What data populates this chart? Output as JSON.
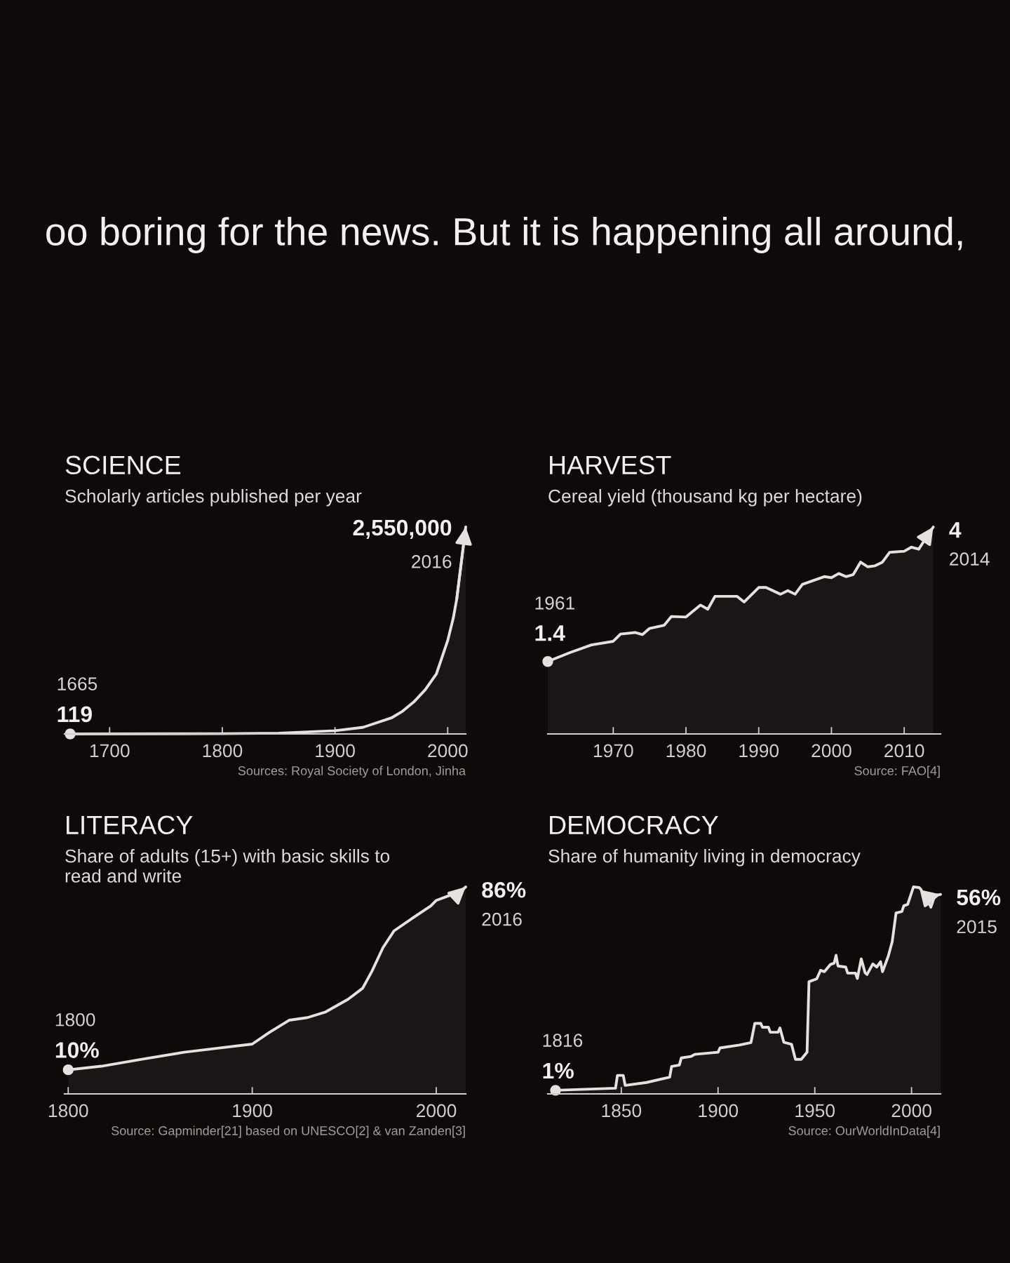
{
  "chart_data": [
    {
      "type": "other",
      "title": "oo boring for the news. But it is happening all around,"
    },
    {
      "type": "area",
      "title": "SCIENCE",
      "subtitle": "Scholarly articles published per year",
      "color": "#e4e1de",
      "x": [
        1665,
        1800,
        1850,
        1900,
        1925,
        1950,
        1960,
        1970,
        1980,
        1990,
        2000,
        2005,
        2008,
        2016
      ],
      "values": [
        119,
        3000,
        10000,
        40000,
        82000,
        197000,
        280000,
        395000,
        543000,
        740000,
        1150000,
        1430000,
        1660000,
        2550000
      ],
      "value_labels": [
        "119",
        null,
        null,
        null,
        null,
        null,
        null,
        null,
        null,
        null,
        null,
        null,
        null,
        "2,550,000"
      ],
      "annotations": [
        {
          "text": "1665",
          "x": 1665,
          "y": 119
        },
        {
          "text": "2016",
          "x": 2016,
          "y": 2550000
        },
        "Sources: Royal Society of London, Jinha"
      ],
      "xlim": [
        1660,
        2016
      ],
      "xticks": [
        1700,
        1800,
        1900,
        2000
      ],
      "tick_labels": "x"
    },
    {
      "type": "area",
      "title": "HARVEST",
      "subtitle": "Cereal yield (thousand kg per hectare)",
      "color": "#e4e1de",
      "x": [
        1961,
        1964,
        1967,
        1970,
        1971,
        1973,
        1974,
        1975,
        1977,
        1978,
        1980,
        1982,
        1983,
        1984,
        1987,
        1988,
        1990,
        1991,
        1993,
        1994,
        1995,
        1996,
        1999,
        2000,
        2001,
        2002,
        2003,
        2004,
        2005,
        2006,
        2007,
        2008,
        2010,
        2011,
        2012,
        2013,
        2014
      ],
      "values": [
        1.4,
        1.57,
        1.72,
        1.79,
        1.93,
        1.96,
        1.92,
        2.04,
        2.1,
        2.27,
        2.26,
        2.49,
        2.41,
        2.66,
        2.66,
        2.55,
        2.83,
        2.83,
        2.7,
        2.77,
        2.7,
        2.89,
        3.04,
        3.02,
        3.1,
        3.04,
        3.08,
        3.32,
        3.23,
        3.25,
        3.32,
        3.51,
        3.53,
        3.61,
        3.57,
        3.79,
        4
      ],
      "value_labels": [
        "1.4",
        null,
        null,
        null,
        null,
        null,
        null,
        null,
        null,
        null,
        null,
        null,
        null,
        null,
        null,
        null,
        null,
        null,
        null,
        null,
        null,
        null,
        null,
        null,
        null,
        null,
        null,
        null,
        null,
        null,
        null,
        null,
        null,
        null,
        null,
        null,
        "4"
      ],
      "annotations": [
        {
          "text": "1961",
          "x": 1961,
          "y": 1.4
        },
        {
          "text": "2014",
          "x": 2014,
          "y": 4
        },
        "Source: FAO[4]"
      ],
      "xlim": [
        1961,
        2015
      ],
      "xticks": [
        1970,
        1980,
        1990,
        2000,
        2010
      ],
      "tick_labels": "x"
    },
    {
      "type": "area",
      "title": "LITERACY",
      "subtitle": "Share of adults (15+) with basic skills to\nread and write",
      "color": "#e4e1de",
      "x": [
        1800,
        1818,
        1840,
        1863,
        1878,
        1900,
        1909,
        1920,
        1930,
        1940,
        1952,
        1960,
        1965,
        1971,
        1977,
        1988,
        1997,
        2000,
        2007,
        2013,
        2016
      ],
      "values": [
        10,
        11.5,
        14.4,
        17.3,
        18.7,
        20.7,
        25.4,
        30.6,
        31.7,
        34.1,
        39.3,
        43.9,
        50.9,
        60.7,
        67.7,
        73.5,
        78.1,
        80.4,
        82.4,
        83.9,
        86
      ],
      "value_labels": [
        "10%",
        null,
        null,
        null,
        null,
        null,
        null,
        null,
        null,
        null,
        null,
        null,
        null,
        null,
        null,
        null,
        null,
        null,
        null,
        null,
        "86%"
      ],
      "annotations": [
        {
          "text": "1800",
          "x": 1800,
          "y": 10
        },
        {
          "text": "2016",
          "x": 2016,
          "y": 86
        },
        "Source: Gapminder[21] based on UNESCO[2] & van Zanden[3]"
      ],
      "xlim": [
        1798,
        2016
      ],
      "xticks": [
        1800,
        1900,
        2000
      ],
      "tick_labels": "x"
    },
    {
      "type": "area",
      "title": "DEMOCRACY",
      "subtitle": "Share of humanity living in democracy",
      "color": "#e4e1de",
      "x": [
        1816,
        1847,
        1848,
        1851,
        1852,
        1863,
        1875,
        1876,
        1880,
        1881,
        1886,
        1888,
        1900,
        1901,
        1911,
        1917,
        1919,
        1922,
        1923,
        1926,
        1927,
        1931,
        1932,
        1934,
        1938,
        1940,
        1943,
        1946,
        1947,
        1951,
        1953,
        1955,
        1958,
        1960,
        1961,
        1962,
        1966,
        1967,
        1971,
        1972,
        1974,
        1976,
        1977,
        1980,
        1982,
        1984,
        1985,
        1988,
        1990,
        1992,
        1995,
        1996,
        1998,
        2001,
        2004,
        2005,
        2007,
        2009,
        2010,
        2012,
        2015
      ],
      "values": [
        1,
        1.6,
        5.2,
        5.2,
        2.4,
        3.2,
        4.7,
        7.7,
        8.1,
        10.1,
        10.5,
        11.1,
        11.7,
        12.9,
        13.7,
        14.4,
        19.8,
        19.8,
        18.7,
        18.7,
        17.3,
        17.3,
        18.5,
        14.5,
        13.9,
        9.7,
        9.7,
        11.7,
        31.5,
        32.3,
        34.7,
        34.3,
        36.3,
        36.7,
        38.9,
        35.9,
        35.6,
        33.9,
        33.9,
        32.4,
        37.9,
        34,
        33.5,
        36.5,
        35.6,
        37.1,
        34.3,
        38.7,
        42.7,
        50.8,
        51.2,
        52.8,
        53.2,
        58.1,
        57.9,
        57.3,
        52.8,
        53.6,
        52.4,
        55.6,
        56
      ],
      "value_labels": [
        "1%",
        null,
        null,
        null,
        null,
        null,
        null,
        null,
        null,
        null,
        null,
        null,
        null,
        null,
        null,
        null,
        null,
        null,
        null,
        null,
        null,
        null,
        null,
        null,
        null,
        null,
        null,
        null,
        null,
        null,
        null,
        null,
        null,
        null,
        null,
        null,
        null,
        null,
        null,
        null,
        null,
        null,
        null,
        null,
        null,
        null,
        null,
        null,
        null,
        null,
        null,
        null,
        null,
        null,
        null,
        null,
        null,
        null,
        null,
        null,
        "56%"
      ],
      "annotations": [
        {
          "text": "1816",
          "x": 1816,
          "y": 1
        },
        {
          "text": "2015",
          "x": 2015,
          "y": 56
        },
        "Source: OurWorldInData[4]"
      ],
      "xlim": [
        1812,
        2015
      ],
      "xticks": [
        1850,
        1900,
        1950,
        2000
      ],
      "tick_labels": "x"
    }
  ]
}
